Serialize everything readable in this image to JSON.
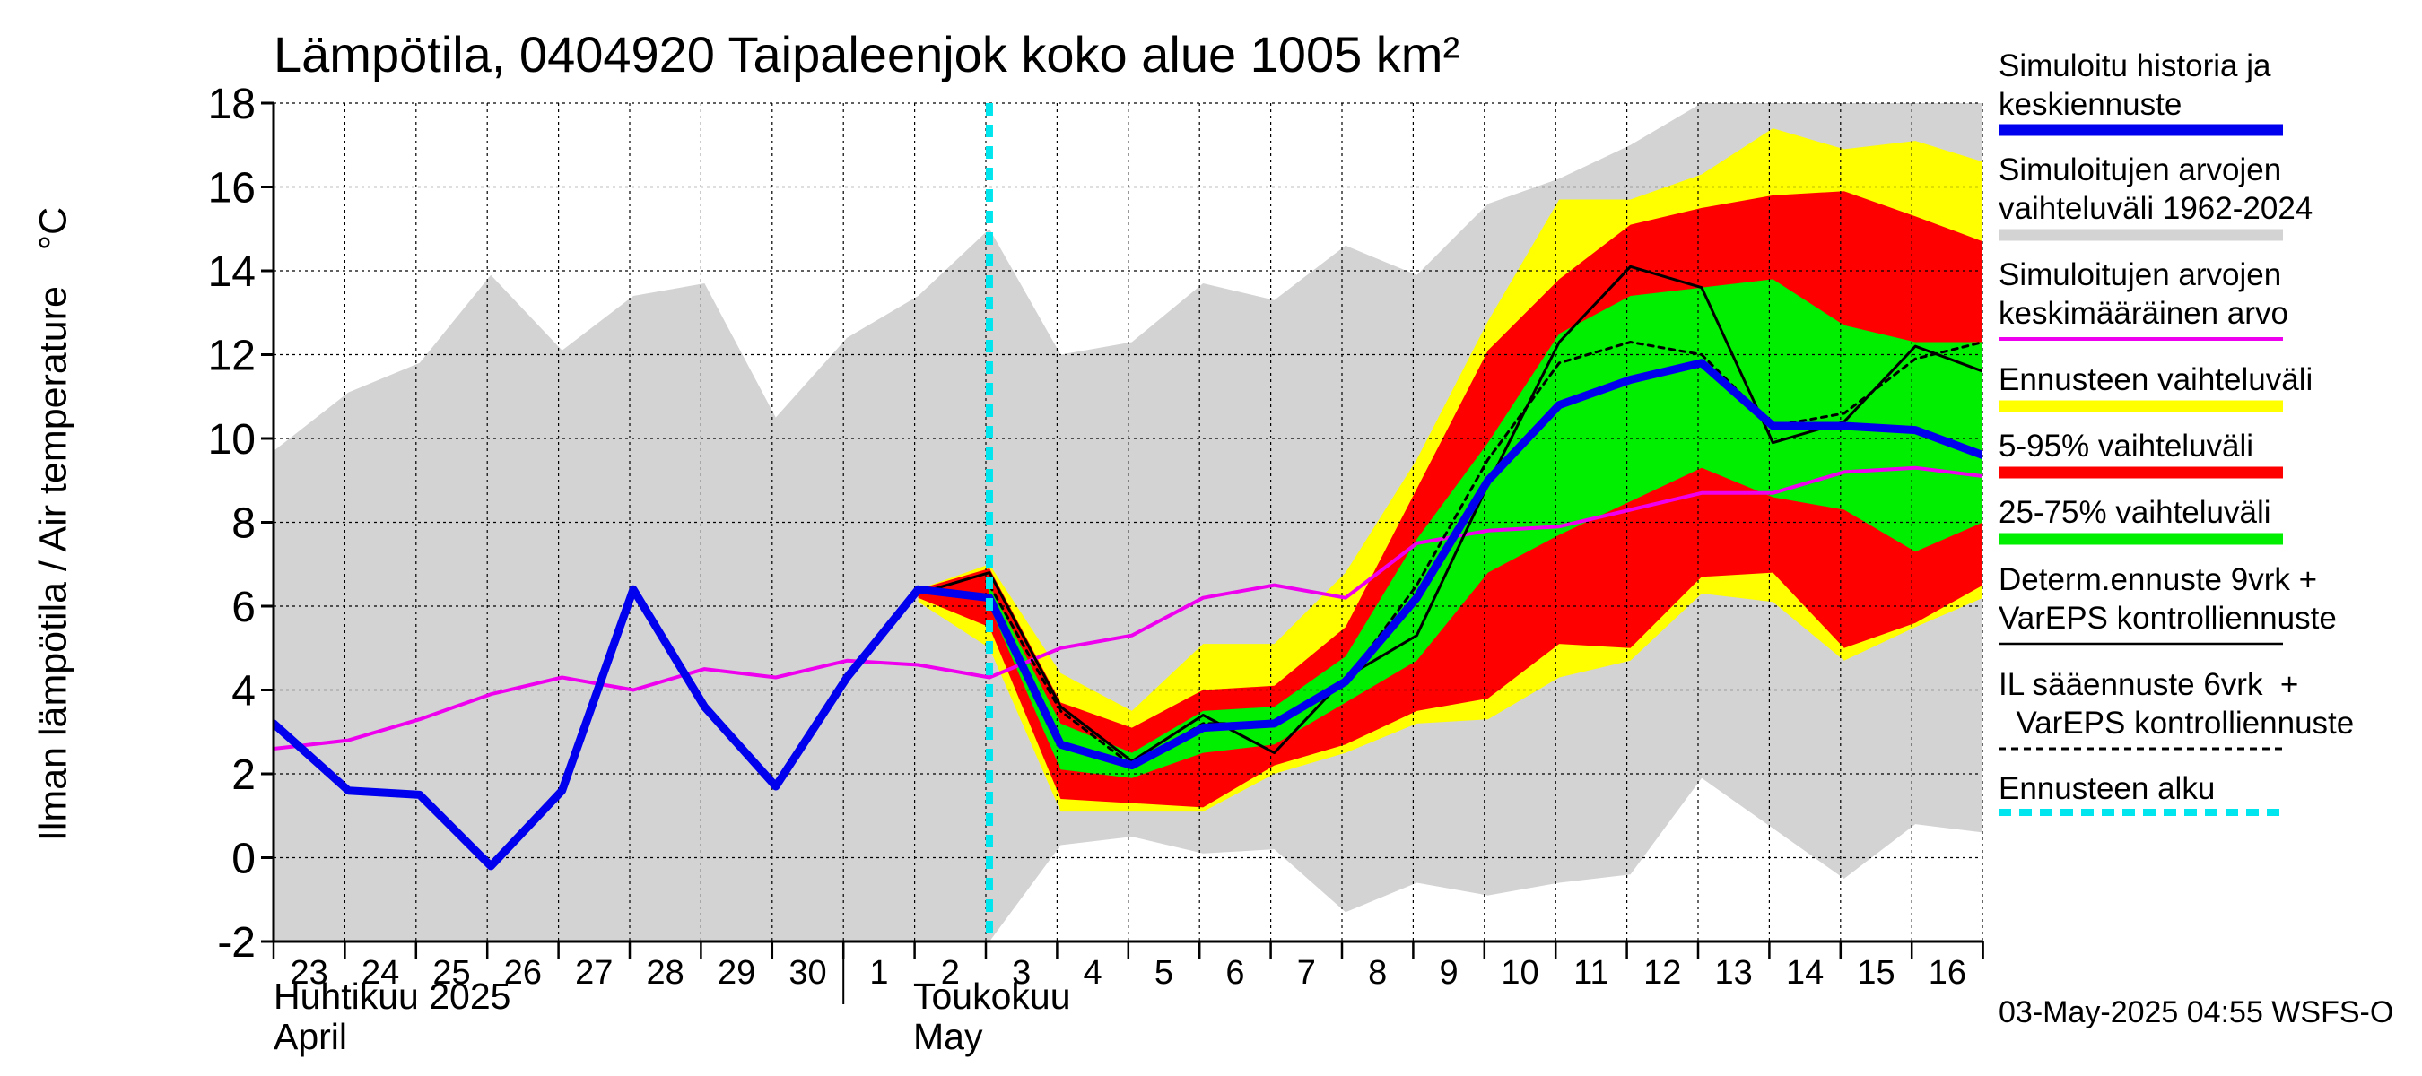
{
  "title": "Lämpötila, 0404920 Taipaleenjok koko alue 1005 km²",
  "y_axis_label": "Ilman lämpötila / Air temperature",
  "y_axis_unit": "°C",
  "month_labels": {
    "april_fi": "Huhtikuu  2025",
    "april_en": "April",
    "may_fi": "Toukokuu",
    "may_en": "May"
  },
  "legend": [
    {
      "text": "Simuloitu historia ja\nkeskiennuste",
      "color": "#0000ee",
      "style": "thick"
    },
    {
      "text": "Simuloitujen arvojen\nvaihteluväli 1962-2024",
      "color": "#d3d3d3",
      "style": "thick"
    },
    {
      "text": "Simuloitujen arvojen\nkeskimääräinen arvo",
      "color": "#ee00ee",
      "style": "medium"
    },
    {
      "text": "Ennusteen vaihteluväli",
      "color": "#ffff00",
      "style": "thick"
    },
    {
      "text": "5-95% vaihteluväli",
      "color": "#ff0000",
      "style": "thick"
    },
    {
      "text": "25-75% vaihteluväli",
      "color": "#00ee00",
      "style": "thick"
    },
    {
      "text": "Determ.ennuste 9vrk +\nVarEPS kontrolliennuste",
      "color": "#000000",
      "style": "thin"
    },
    {
      "text": "IL sääennuste 6vrk  +\n  VarEPS kontrolliennuste",
      "color": "#000000",
      "style": "dashed"
    },
    {
      "text": "Ennusteen alku",
      "color": "#00e5ee",
      "style": "cyan-dashed"
    }
  ],
  "timestamp": "03-May-2025 04:55 WSFS-O",
  "chart_data": {
    "type": "line",
    "title": "Lämpötila, 0404920 Taipaleenjok koko alue 1005 km²",
    "ylabel": "Ilman lämpötila / Air temperature °C",
    "xlabel": "",
    "ylim": [
      -2,
      18
    ],
    "yticks": [
      -2,
      0,
      2,
      4,
      6,
      8,
      10,
      12,
      14,
      16,
      18
    ],
    "day_ticks": [
      "23",
      "24",
      "25",
      "26",
      "27",
      "28",
      "29",
      "30",
      "1",
      "2",
      "3",
      "4",
      "5",
      "6",
      "7",
      "8",
      "9",
      "10",
      "11",
      "12",
      "13",
      "14",
      "15",
      "16"
    ],
    "x_start": -0.05,
    "x_end": 23.95,
    "forecast_start": 10.0,
    "series": [
      {
        "name": "Simuloitujen arvojen vaihteluväli 1962-2024",
        "kind": "band",
        "color": "#d3d3d3",
        "x": [
          -0.05,
          1,
          2,
          3,
          4,
          5,
          6,
          7,
          8,
          9,
          10,
          11,
          12,
          13,
          14,
          15,
          16,
          17,
          18,
          19,
          20,
          21,
          22,
          23,
          23.95
        ],
        "lower": [
          -2,
          -2,
          -2,
          -2,
          -2,
          -2,
          -2,
          -2,
          -2,
          -2,
          -2,
          0.3,
          0.5,
          0.1,
          0.2,
          -1.3,
          -0.6,
          -0.9,
          -0.6,
          -0.4,
          1.9,
          0.7,
          -0.5,
          0.8,
          0.6
        ],
        "upper": [
          9.7,
          11.1,
          11.8,
          13.9,
          12.1,
          13.4,
          13.7,
          10.5,
          12.4,
          13.4,
          15.0,
          12.0,
          12.3,
          13.7,
          13.3,
          14.6,
          13.9,
          15.6,
          16.2,
          17.0,
          18,
          18,
          18,
          18,
          18
        ]
      },
      {
        "name": "Ennusteen vaihteluväli",
        "kind": "band",
        "color": "#ffff00",
        "x": [
          9,
          10,
          11,
          12,
          13,
          14,
          15,
          16,
          17,
          18,
          19,
          20,
          21,
          22,
          23,
          23.95
        ],
        "lower": [
          6.1,
          5.0,
          1.1,
          1.1,
          1.1,
          2.0,
          2.5,
          3.2,
          3.3,
          4.3,
          4.7,
          6.3,
          6.1,
          4.7,
          5.5,
          6.2
        ],
        "upper": [
          6.4,
          7.0,
          4.4,
          3.5,
          5.1,
          5.1,
          6.8,
          9.5,
          12.8,
          15.7,
          15.7,
          16.3,
          17.4,
          16.9,
          17.1,
          16.6
        ]
      },
      {
        "name": "5-95% vaihteluväli",
        "kind": "band",
        "color": "#ff0000",
        "x": [
          9,
          10,
          11,
          12,
          13,
          14,
          15,
          16,
          17,
          18,
          19,
          20,
          21,
          22,
          23,
          23.95
        ],
        "lower": [
          6.2,
          5.5,
          1.4,
          1.3,
          1.2,
          2.2,
          2.7,
          3.5,
          3.8,
          5.1,
          5.0,
          6.7,
          6.8,
          5.0,
          5.6,
          6.5
        ],
        "upper": [
          6.4,
          6.9,
          3.7,
          3.1,
          4.0,
          4.1,
          5.5,
          8.8,
          12.1,
          13.8,
          15.1,
          15.5,
          15.8,
          15.9,
          15.3,
          14.7
        ]
      },
      {
        "name": "25-75% vaihteluväli",
        "kind": "band",
        "color": "#00ee00",
        "x": [
          10,
          11,
          12,
          13,
          14,
          15,
          16,
          17,
          18,
          19,
          20,
          21,
          22,
          23,
          23.95
        ],
        "lower": [
          6.0,
          2.1,
          1.9,
          2.5,
          2.7,
          3.7,
          4.7,
          6.8,
          7.7,
          8.5,
          9.3,
          8.6,
          8.3,
          7.3,
          8.0
        ],
        "upper": [
          6.5,
          3.2,
          2.5,
          3.5,
          3.6,
          4.8,
          7.6,
          9.9,
          12.5,
          13.4,
          13.6,
          13.8,
          12.7,
          12.3,
          12.3
        ]
      },
      {
        "name": "Simuloitujen arvojen keskimääräinen arvo",
        "kind": "line",
        "color": "#ee00ee",
        "x": [
          -0.05,
          1,
          2,
          3,
          4,
          5,
          6,
          7,
          8,
          9,
          10,
          11,
          12,
          13,
          14,
          15,
          16,
          17,
          18,
          19,
          20,
          21,
          22,
          23,
          23.95
        ],
        "values": [
          2.6,
          2.8,
          3.3,
          3.9,
          4.3,
          4.0,
          4.5,
          4.3,
          4.7,
          4.6,
          4.3,
          5.0,
          5.3,
          6.2,
          6.5,
          6.2,
          7.5,
          7.8,
          7.9,
          8.3,
          8.7,
          8.7,
          9.2,
          9.3,
          9.1
        ]
      },
      {
        "name": "Determ.ennuste 9vrk + VarEPS kontrolliennuste",
        "kind": "line",
        "color": "#000000",
        "x": [
          8,
          9,
          10,
          11,
          12,
          13,
          14,
          15,
          16,
          17,
          18,
          19,
          20,
          21,
          22,
          23,
          23.95
        ],
        "values": [
          4.3,
          6.3,
          6.8,
          3.6,
          2.3,
          3.4,
          2.5,
          4.3,
          5.3,
          8.9,
          12.3,
          14.1,
          13.6,
          9.9,
          10.4,
          12.2,
          11.6
        ]
      },
      {
        "name": "IL sääennuste 6vrk + VarEPS kontrolliennuste",
        "kind": "line",
        "color": "#000000",
        "dashed": true,
        "x": [
          10,
          11,
          12,
          13,
          14,
          15,
          16,
          17,
          18,
          19,
          20,
          21,
          22,
          23,
          23.95
        ],
        "values": [
          6.5,
          3.5,
          2.2,
          3.2,
          3.2,
          4.2,
          6.5,
          9.5,
          11.8,
          12.3,
          12.0,
          10.3,
          10.6,
          11.9,
          12.3
        ]
      },
      {
        "name": "Simuloitu historia ja keskiennuste",
        "kind": "line",
        "color": "#0000ee",
        "x": [
          -0.05,
          1,
          2,
          3,
          4,
          5,
          6,
          7,
          8,
          9,
          10,
          11,
          12,
          13,
          14,
          15,
          16,
          17,
          18,
          19,
          20,
          21,
          22,
          23,
          23.95
        ],
        "values": [
          3.2,
          1.6,
          1.5,
          -0.2,
          1.6,
          6.4,
          3.6,
          1.7,
          4.3,
          6.4,
          6.2,
          2.7,
          2.2,
          3.1,
          3.2,
          4.2,
          6.2,
          9.0,
          10.8,
          11.4,
          11.8,
          10.3,
          10.3,
          10.2,
          9.6
        ]
      }
    ]
  }
}
